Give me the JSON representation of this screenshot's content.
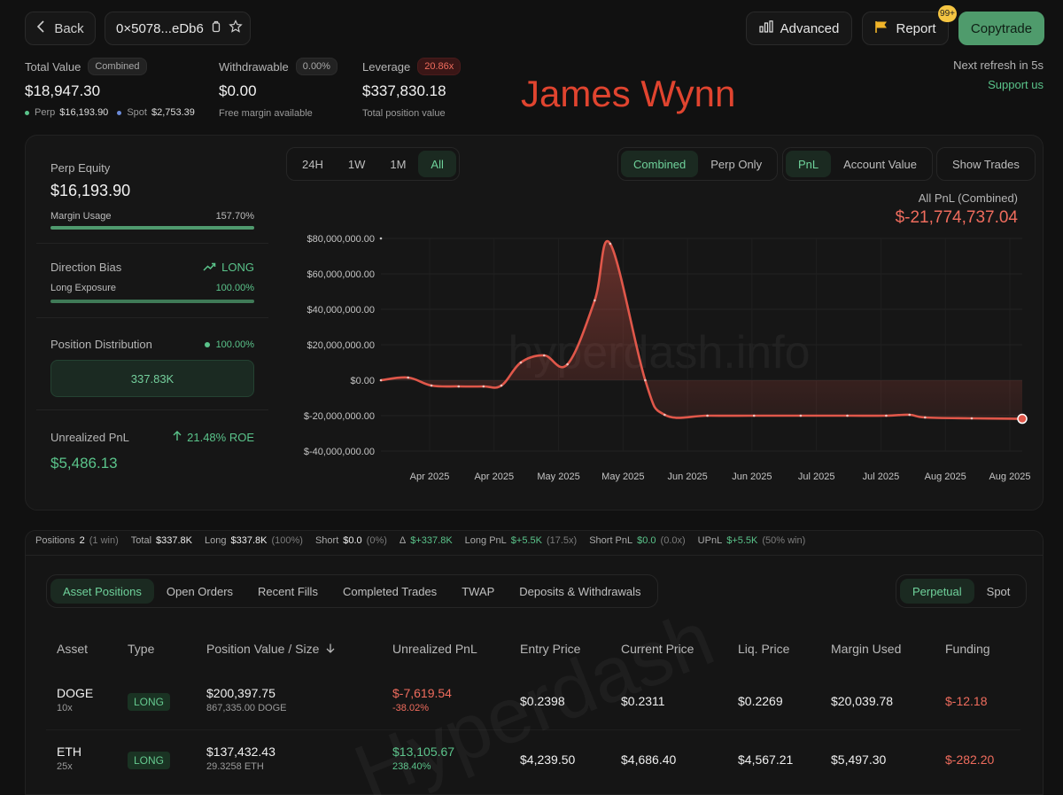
{
  "header": {
    "back_label": "Back",
    "address": "0×5078...eDb6",
    "advanced_label": "Advanced",
    "report_label": "Report",
    "report_badge": "99+",
    "copytrade_label": "Copytrade",
    "refresh_text": "Next refresh in 5s",
    "support_text": "Support us"
  },
  "overlay_name": "James Wynn",
  "summary": {
    "total_value": {
      "label": "Total Value",
      "pill": "Combined",
      "value": "$18,947.30",
      "perp_label": "Perp",
      "perp_value": "$16,193.90",
      "spot_label": "Spot",
      "spot_value": "$2,753.39"
    },
    "withdrawable": {
      "label": "Withdrawable",
      "pill": "0.00%",
      "value": "$0.00",
      "sub": "Free margin available"
    },
    "leverage": {
      "label": "Leverage",
      "pill": "20.86x",
      "value": "$337,830.18",
      "sub": "Total position value"
    }
  },
  "side_panel": {
    "perp_equity_label": "Perp Equity",
    "perp_equity_value": "$16,193.90",
    "margin_usage_label": "Margin Usage",
    "margin_usage_value": "157.70%",
    "margin_usage_fraction": 1.0,
    "direction_bias_label": "Direction Bias",
    "direction_bias_value": "LONG",
    "long_exposure_label": "Long Exposure",
    "long_exposure_value": "100.00%",
    "long_exposure_fraction": 1.0,
    "position_distribution_label": "Position Distribution",
    "position_distribution_pct": "100.00%",
    "position_distribution_value": "337.83K",
    "unrealized_pnl_label": "Unrealized PnL",
    "roe_text": "21.48% ROE",
    "unrealized_pnl_value": "$5,486.13"
  },
  "chart_controls": {
    "ranges": [
      "24H",
      "1W",
      "1M",
      "All"
    ],
    "active_range": "All",
    "modes": [
      "Combined",
      "Perp Only"
    ],
    "active_mode": "Combined",
    "metrics": [
      "PnL",
      "Account Value"
    ],
    "active_metric": "PnL",
    "show_trades_label": "Show Trades",
    "readout_label": "All PnL (Combined)",
    "readout_value": "$-21,774,737.04",
    "watermark": "hyperdash.info"
  },
  "chart_data": {
    "type": "area",
    "y_ticks": [
      "$80,000,000.00",
      "$60,000,000.00",
      "$40,000,000.00",
      "$20,000,000.00",
      "$0.00",
      "$-20,000,000.00",
      "$-40,000,000.00"
    ],
    "x_ticks": [
      "Apr 2025",
      "Apr 2025",
      "May 2025",
      "May 2025",
      "Jun 2025",
      "Jun 2025",
      "Jul 2025",
      "Jul 2025",
      "Aug 2025",
      "Aug 2025"
    ],
    "ylim": [
      -40000000,
      80000000
    ],
    "grid": true,
    "color": "#e0574a",
    "series": [
      {
        "values": [
          0,
          1500000,
          -3000000,
          -3500000,
          -3500000,
          -3000000,
          10000000,
          14000000,
          9000000,
          45000000,
          77000000,
          0,
          -19500000,
          -20000000,
          -20000000,
          -20000000,
          -20000000,
          -20000000,
          -19500000,
          -21000000,
          -21500000,
          -21774737
        ]
      }
    ]
  },
  "stats_bar": [
    {
      "label": "Positions",
      "value": "2",
      "note": "(1 win)",
      "tone": "plain"
    },
    {
      "label": "Total",
      "value": "$337.8K",
      "note": "",
      "tone": "plain"
    },
    {
      "label": "Long",
      "value": "$337.8K",
      "note": "(100%)",
      "tone": "plain"
    },
    {
      "label": "Short",
      "value": "$0.0",
      "note": "(0%)",
      "tone": "plain"
    },
    {
      "label": "Δ",
      "value": "$+337.8K",
      "note": "",
      "tone": "green"
    },
    {
      "label": "Long PnL",
      "value": "$+5.5K",
      "note": "(17.5x)",
      "tone": "green"
    },
    {
      "label": "Short PnL",
      "value": "$0.0",
      "note": "(0.0x)",
      "tone": "green"
    },
    {
      "label": "UPnL",
      "value": "$+5.5K",
      "note": "(50% win)",
      "tone": "green"
    }
  ],
  "tabs": [
    "Asset Positions",
    "Open Orders",
    "Recent Fills",
    "Completed Trades",
    "TWAP",
    "Deposits & Withdrawals"
  ],
  "active_tab": "Asset Positions",
  "market_tabs": [
    "Perpetual",
    "Spot"
  ],
  "active_market_tab": "Perpetual",
  "table": {
    "headers": [
      "Asset",
      "Type",
      "Position Value / Size",
      "Unrealized PnL",
      "Entry Price",
      "Current Price",
      "Liq. Price",
      "Margin Used",
      "Funding"
    ],
    "rows": [
      {
        "asset": "DOGE",
        "leverage": "10x",
        "type": "LONG",
        "value": "$200,397.75",
        "size": "867,335.00 DOGE",
        "pnl": "$-7,619.54",
        "pnl_pct": "-38.02%",
        "pnl_tone": "red",
        "entry": "$0.2398",
        "current": "$0.2311",
        "liq": "$0.2269",
        "margin": "$20,039.78",
        "funding": "$-12.18"
      },
      {
        "asset": "ETH",
        "leverage": "25x",
        "type": "LONG",
        "value": "$137,432.43",
        "size": "29.3258 ETH",
        "pnl": "$13,105.67",
        "pnl_pct": "238.40%",
        "pnl_tone": "green",
        "entry": "$4,239.50",
        "current": "$4,686.40",
        "liq": "$4,567.21",
        "margin": "$5,497.30",
        "funding": "$-282.20"
      }
    ]
  }
}
